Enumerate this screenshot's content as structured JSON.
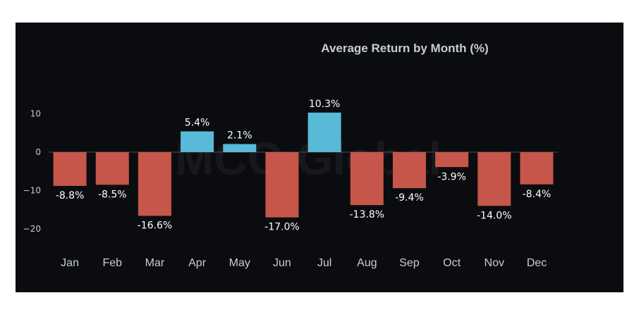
{
  "watermark": "MCO Global",
  "colors": {
    "positive": "#59bad8",
    "negative": "#c65649",
    "zero_line": "#4a4d55"
  },
  "chart_data": {
    "type": "bar",
    "title": "Average Return by Month (%)",
    "xlabel": "",
    "ylabel": "",
    "categories": [
      "Jan",
      "Feb",
      "Mar",
      "Apr",
      "May",
      "Jun",
      "Jul",
      "Aug",
      "Sep",
      "Oct",
      "Nov",
      "Dec"
    ],
    "values": [
      -8.8,
      -8.5,
      -16.6,
      5.4,
      2.1,
      -17.0,
      10.3,
      -13.8,
      -9.4,
      -3.9,
      -14.0,
      -8.4
    ],
    "data_labels": [
      "-8.8%",
      "-8.5%",
      "-16.6%",
      "5.4%",
      "2.1%",
      "-17.0%",
      "10.3%",
      "-13.8%",
      "-9.4%",
      "-3.9%",
      "-14.0%",
      "-8.4%"
    ],
    "y_ticks": [
      10,
      0,
      -10,
      -20
    ],
    "y_tick_labels": [
      "10",
      "0",
      "−10",
      "−20"
    ],
    "ylim": [
      -22,
      12
    ],
    "grid": false,
    "legend": "none"
  }
}
